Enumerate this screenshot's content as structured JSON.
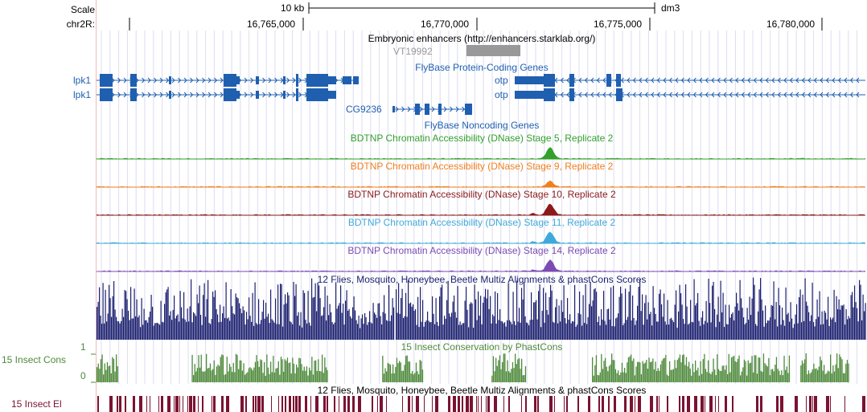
{
  "ruler": {
    "scale_label": "Scale",
    "chrom_label": "chr2R:",
    "scale_bar_text": "10 kb",
    "assembly": "dm3",
    "positions": [
      "16,765,000",
      "16,770,000",
      "16,775,000",
      "16,780,000"
    ]
  },
  "enhancers": {
    "title": "Embryonic enhancers (http://enhancers.starklab.org/)",
    "item": "VT19992"
  },
  "genes": {
    "protein_title": "FlyBase Protein-Coding Genes",
    "noncoding_title": "FlyBase Noncoding Genes",
    "left_labels": [
      "lpk1",
      "lpk1"
    ],
    "otp_labels": [
      "otp",
      "otp"
    ],
    "cg_label": "CG9236",
    "color": "#1f5fb0"
  },
  "dnase": [
    {
      "title": "BDTNP Chromatin Accessibility (DNase) Stage 5, Replicate 2",
      "color": "#33a02c"
    },
    {
      "title": "BDTNP Chromatin Accessibility (DNase) Stage 9, Replicate 2",
      "color": "#f07f1e"
    },
    {
      "title": "BDTNP Chromatin Accessibility (DNase) Stage 10, Replicate 2",
      "color": "#8b1a1a"
    },
    {
      "title": "BDTNP Chromatin Accessibility (DNase) Stage 11, Replicate 2",
      "color": "#3fa9d9"
    },
    {
      "title": "BDTNP Chromatin Accessibility (DNase) Stage 14, Replicate 2",
      "color": "#7b4bb3"
    }
  ],
  "multiz": {
    "title": "12 Flies, Mosquito, Honeybee, Beetle Multiz Alignments & phastCons Scores",
    "color": "#1b1f6e"
  },
  "insect_cons": {
    "side_label": "15 Insect Cons",
    "title": "15 Insect Conservation by PhastCons",
    "axis_top": "1",
    "axis_bottom": "0",
    "color": "#4e8a3b"
  },
  "insect_el": {
    "side_label": "15 Insect El",
    "title": "12 Flies, Mosquito, Honeybee, Beetle Multiz Alignments & phastCons Scores",
    "color": "#7a1331"
  }
}
